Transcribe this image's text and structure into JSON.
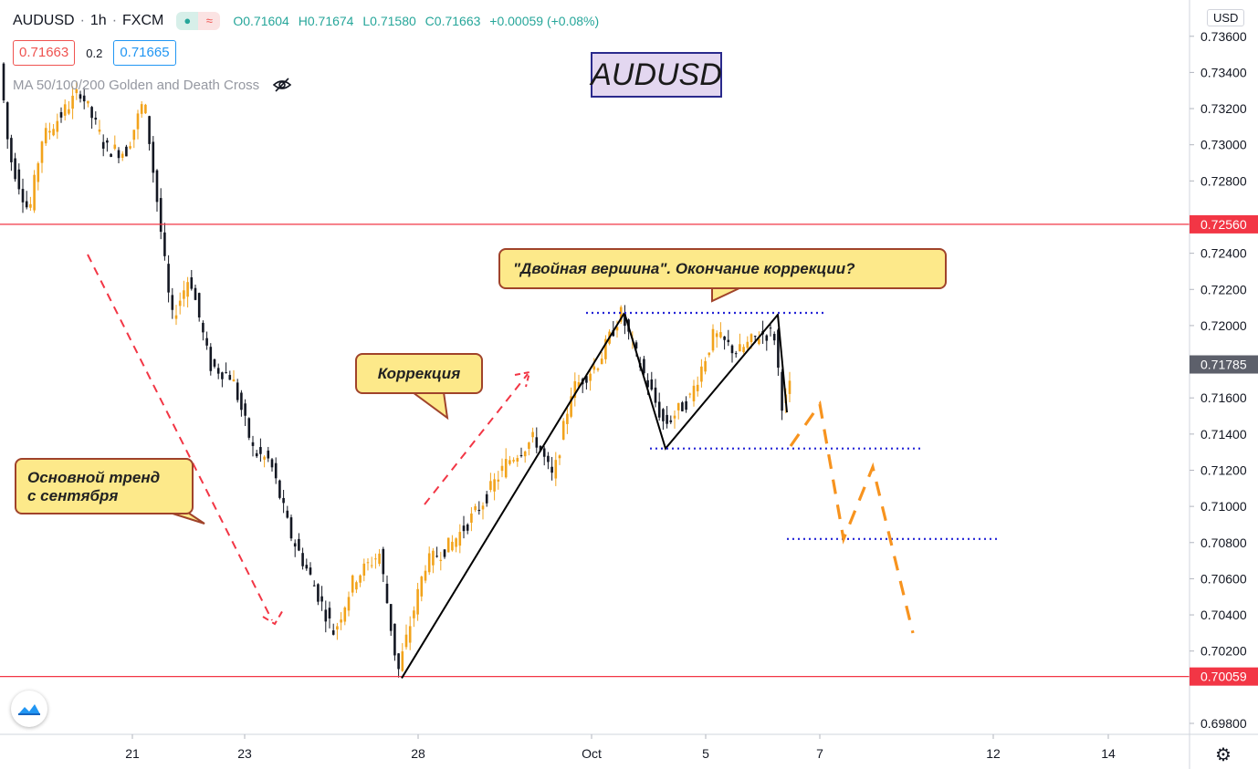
{
  "header": {
    "symbol": "AUDUSD",
    "interval": "1h",
    "exchange": "FXCM",
    "open_label": "O",
    "open": "0.71604",
    "high_label": "H",
    "high": "0.71674",
    "low_label": "L",
    "low": "0.71580",
    "close_label": "C",
    "close": "0.71663",
    "change": "+0.00059 (+0.08%)"
  },
  "trade": {
    "sell_price": "0.71663",
    "spread": "0.2",
    "buy_price": "0.71665"
  },
  "indicator": {
    "name": "MA 50/100/200 Golden and Death Cross",
    "icon": "eye-crossed-icon"
  },
  "currency": "USD",
  "annotations": {
    "title": "AUDUSD",
    "double_top": "\"Двойная вершина\". Окончание коррекции?",
    "correction": "Коррекция",
    "main_trend_line1": "Основной тренд",
    "main_trend_line2": "с сентября"
  },
  "colors": {
    "up": "#f2a31b",
    "down": "#131722",
    "level_line": "#f23645",
    "dotted": "#2424d6",
    "forecast": "#f7931e",
    "trend_arrow": "#f23645",
    "callout_bg": "#fde98a",
    "callout_border": "#a0432a"
  },
  "chart_data": {
    "type": "candlestick",
    "symbol": "AUDUSD",
    "timeframe": "1h",
    "y_ticks": [
      "0.73600",
      "0.73400",
      "0.73200",
      "0.73000",
      "0.72800",
      "0.72400",
      "0.72200",
      "0.72000",
      "0.71600",
      "0.71400",
      "0.71200",
      "0.71000",
      "0.70800",
      "0.70600",
      "0.70400",
      "0.70200",
      "0.69800"
    ],
    "ylim": [
      0.6972,
      0.7378
    ],
    "x_ticks": [
      "21",
      "23",
      "28",
      "Oct",
      "5",
      "7",
      "12",
      "14"
    ],
    "price_labels": [
      {
        "value": "0.72560",
        "color": "#f23645"
      },
      {
        "value": "0.71785",
        "color": "#5d606b"
      },
      {
        "value": "0.70059",
        "color": "#f23645"
      }
    ],
    "horizontal_levels": [
      0.7256,
      0.70059
    ],
    "double_top_peaks": [
      0.7207,
      0.7206
    ],
    "double_top_neckline": 0.7132,
    "target_level": 0.7082,
    "key_points": [
      {
        "label": "start",
        "value": 0.7345
      },
      {
        "label": "sep-low",
        "value": 0.7005
      },
      {
        "label": "peak-1",
        "value": 0.7207
      },
      {
        "label": "neckline",
        "value": 0.7132
      },
      {
        "label": "peak-2",
        "value": 0.7206
      },
      {
        "label": "last",
        "value": 0.7166
      }
    ]
  }
}
